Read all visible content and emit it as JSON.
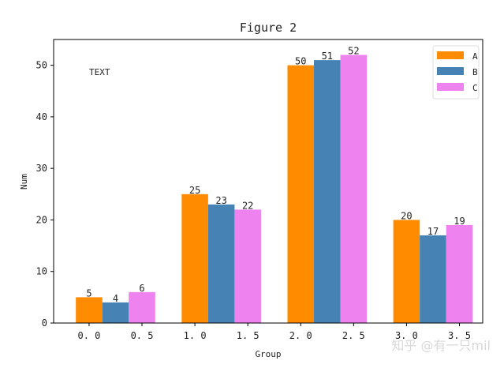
{
  "chart_data": {
    "type": "bar",
    "title": "Figure 2",
    "xlabel": "Group",
    "ylabel": "Num",
    "annotation": "TEXT",
    "groups": [
      0,
      1,
      2,
      3
    ],
    "bar_width": 0.25,
    "series": [
      {
        "name": "A",
        "color": "#ff8c00",
        "offset": 0,
        "values": [
          5,
          25,
          50,
          20
        ]
      },
      {
        "name": "B",
        "color": "#4682b4",
        "offset": 0.25,
        "values": [
          4,
          23,
          51,
          17
        ]
      },
      {
        "name": "C",
        "color": "#ee82ee",
        "offset": 0.5,
        "values": [
          6,
          22,
          52,
          19
        ]
      }
    ],
    "xticks": [
      "0.0",
      "0.5",
      "1.0",
      "1.5",
      "2.0",
      "2.5",
      "3.0",
      "3.5"
    ],
    "yticks": [
      "0",
      "10",
      "20",
      "30",
      "40",
      "50"
    ],
    "xlim": [
      -0.335,
      3.72
    ],
    "ylim": [
      0,
      55
    ],
    "grid": false,
    "legend_placement": "top-right"
  },
  "watermark": "知乎 @有一只mil"
}
